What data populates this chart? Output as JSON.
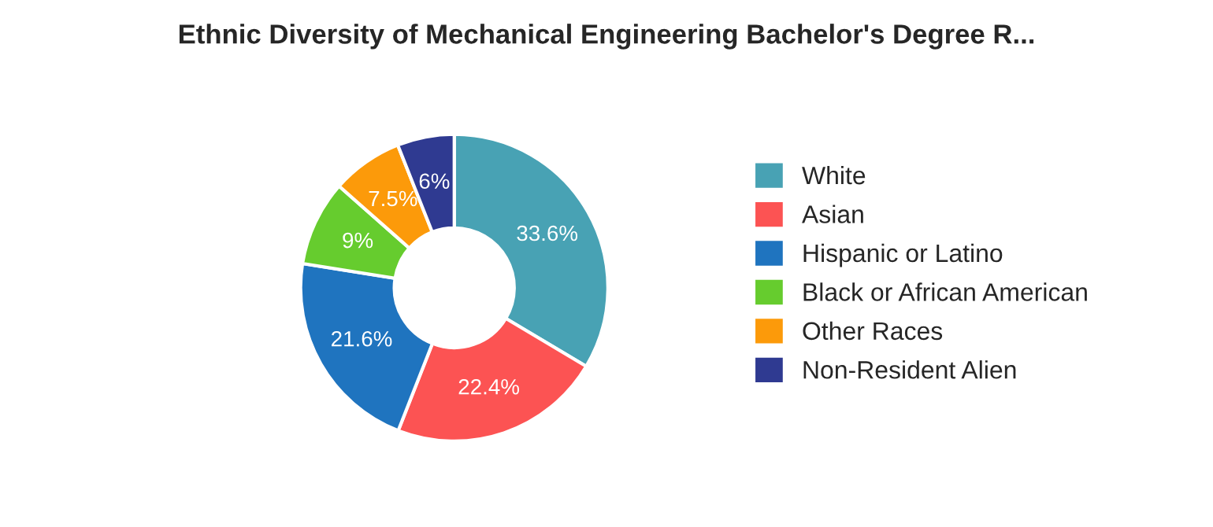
{
  "chart_data": {
    "type": "donut",
    "title": "Ethnic Diversity of Mechanical Engineering Bachelor's Degree R...",
    "categories": [
      "White",
      "Asian",
      "Hispanic or Latino",
      "Black or African American",
      "Other Races",
      "Non-Resident Alien"
    ],
    "values": [
      33.6,
      22.4,
      21.6,
      9,
      7.5,
      6
    ],
    "value_labels": [
      "33.6%",
      "22.4%",
      "21.6%",
      "9%",
      "7.5%",
      "6%"
    ],
    "colors": [
      "#48a2b4",
      "#fc5353",
      "#1f74bf",
      "#66cc2e",
      "#fc9a0a",
      "#2f3a91"
    ],
    "legend": "right"
  }
}
